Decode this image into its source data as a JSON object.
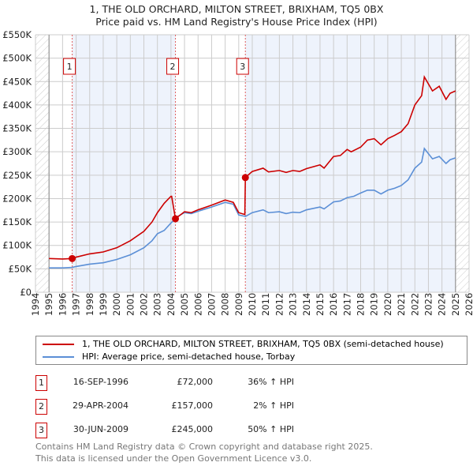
{
  "title_line1": "1, THE OLD ORCHARD, MILTON STREET, BRIXHAM, TQ5 0BX",
  "title_line2": "Price paid vs. HM Land Registry's House Price Index (HPI)",
  "chart_data": {
    "type": "line",
    "xlim": [
      1994,
      2026
    ],
    "ylim": [
      0,
      550000
    ],
    "x_ticks": [
      "1994",
      "1995",
      "1996",
      "1997",
      "1998",
      "1999",
      "2000",
      "2001",
      "2002",
      "2003",
      "2004",
      "2005",
      "2006",
      "2007",
      "2008",
      "2009",
      "2010",
      "2011",
      "2012",
      "2013",
      "2014",
      "2015",
      "2016",
      "2017",
      "2018",
      "2019",
      "2020",
      "2021",
      "2022",
      "2023",
      "2024",
      "2025",
      "2026"
    ],
    "y_ticks": [
      {
        "v": 0,
        "l": "£0"
      },
      {
        "v": 50000,
        "l": "£50K"
      },
      {
        "v": 100000,
        "l": "£100K"
      },
      {
        "v": 150000,
        "l": "£150K"
      },
      {
        "v": 200000,
        "l": "£200K"
      },
      {
        "v": 250000,
        "l": "£250K"
      },
      {
        "v": 300000,
        "l": "£300K"
      },
      {
        "v": 350000,
        "l": "£350K"
      },
      {
        "v": 400000,
        "l": "£400K"
      },
      {
        "v": 450000,
        "l": "£450K"
      },
      {
        "v": 500000,
        "l": "£500K"
      },
      {
        "v": 550000,
        "l": "£550K"
      }
    ],
    "data_range": [
      1995,
      2025
    ],
    "series": [
      {
        "name": "1, THE OLD ORCHARD, MILTON STREET, BRIXHAM, TQ5 0BX (semi-detached house)",
        "color": "#cc0000",
        "points": [
          [
            1995,
            72000
          ],
          [
            1996,
            71000
          ],
          [
            1996.71,
            72000
          ],
          [
            1997,
            75000
          ],
          [
            1998,
            82000
          ],
          [
            1999,
            86000
          ],
          [
            2000,
            95000
          ],
          [
            2001,
            110000
          ],
          [
            2002,
            130000
          ],
          [
            2002.6,
            150000
          ],
          [
            2003,
            170000
          ],
          [
            2003.5,
            190000
          ],
          [
            2004.0,
            205000
          ],
          [
            2004.05,
            205000
          ],
          [
            2004.33,
            157000
          ],
          [
            2005,
            172000
          ],
          [
            2005.5,
            170000
          ],
          [
            2006,
            176000
          ],
          [
            2007,
            186000
          ],
          [
            2008,
            197000
          ],
          [
            2008.6,
            192000
          ],
          [
            2009,
            170000
          ],
          [
            2009.45,
            166000
          ],
          [
            2009.49,
            245000
          ],
          [
            2010,
            258000
          ],
          [
            2010.8,
            265000
          ],
          [
            2011.2,
            257000
          ],
          [
            2012,
            260000
          ],
          [
            2012.5,
            256000
          ],
          [
            2013,
            260000
          ],
          [
            2013.5,
            258000
          ],
          [
            2014,
            264000
          ],
          [
            2015,
            272000
          ],
          [
            2015.3,
            265000
          ],
          [
            2016,
            290000
          ],
          [
            2016.5,
            292000
          ],
          [
            2017,
            305000
          ],
          [
            2017.3,
            300000
          ],
          [
            2018,
            310000
          ],
          [
            2018.5,
            325000
          ],
          [
            2019,
            328000
          ],
          [
            2019.5,
            315000
          ],
          [
            2020,
            328000
          ],
          [
            2020.5,
            335000
          ],
          [
            2021,
            343000
          ],
          [
            2021.5,
            360000
          ],
          [
            2022,
            400000
          ],
          [
            2022.5,
            420000
          ],
          [
            2022.7,
            460000
          ],
          [
            2023.3,
            430000
          ],
          [
            2023.8,
            440000
          ],
          [
            2024.3,
            412000
          ],
          [
            2024.6,
            425000
          ],
          [
            2025,
            430000
          ]
        ]
      },
      {
        "name": "HPI: Average price, semi-detached house, Torbay",
        "color": "#5b8fd6",
        "points": [
          [
            1995,
            52000
          ],
          [
            1996,
            52000
          ],
          [
            1996.71,
            53000
          ],
          [
            1997,
            55000
          ],
          [
            1998,
            60000
          ],
          [
            1999,
            63000
          ],
          [
            2000,
            70000
          ],
          [
            2001,
            80000
          ],
          [
            2002,
            95000
          ],
          [
            2002.6,
            110000
          ],
          [
            2003,
            125000
          ],
          [
            2003.5,
            132000
          ],
          [
            2004,
            148000
          ],
          [
            2004.5,
            162000
          ],
          [
            2005,
            170000
          ],
          [
            2005.5,
            168000
          ],
          [
            2006,
            173000
          ],
          [
            2007,
            182000
          ],
          [
            2008,
            192000
          ],
          [
            2008.6,
            188000
          ],
          [
            2009,
            165000
          ],
          [
            2009.5,
            162000
          ],
          [
            2010,
            170000
          ],
          [
            2010.8,
            176000
          ],
          [
            2011.2,
            170000
          ],
          [
            2012,
            172000
          ],
          [
            2012.5,
            168000
          ],
          [
            2013,
            171000
          ],
          [
            2013.5,
            170000
          ],
          [
            2014,
            176000
          ],
          [
            2015,
            182000
          ],
          [
            2015.3,
            178000
          ],
          [
            2016,
            193000
          ],
          [
            2016.5,
            195000
          ],
          [
            2017,
            202000
          ],
          [
            2017.5,
            205000
          ],
          [
            2018,
            212000
          ],
          [
            2018.5,
            218000
          ],
          [
            2019,
            218000
          ],
          [
            2019.5,
            210000
          ],
          [
            2020,
            218000
          ],
          [
            2020.5,
            222000
          ],
          [
            2021,
            228000
          ],
          [
            2021.5,
            240000
          ],
          [
            2022,
            265000
          ],
          [
            2022.5,
            278000
          ],
          [
            2022.7,
            307000
          ],
          [
            2023.3,
            285000
          ],
          [
            2023.8,
            290000
          ],
          [
            2024.3,
            275000
          ],
          [
            2024.6,
            283000
          ],
          [
            2025,
            287000
          ]
        ]
      }
    ],
    "sales": [
      {
        "label": "1",
        "x": 1996.71,
        "y": 72000
      },
      {
        "label": "2",
        "x": 2004.33,
        "y": 157000
      },
      {
        "label": "3",
        "x": 2009.49,
        "y": 245000
      }
    ]
  },
  "legend": {
    "red": "1, THE OLD ORCHARD, MILTON STREET, BRIXHAM, TQ5 0BX (semi-detached house)",
    "blue": "HPI: Average price, semi-detached house, Torbay"
  },
  "table": [
    {
      "num": "1",
      "date": "16-SEP-1996",
      "price": "£72,000",
      "hpi": "36% ↑ HPI"
    },
    {
      "num": "2",
      "date": "29-APR-2004",
      "price": "£157,000",
      "hpi": "2% ↑ HPI"
    },
    {
      "num": "3",
      "date": "30-JUN-2009",
      "price": "£245,000",
      "hpi": "50% ↑ HPI"
    }
  ],
  "footer": {
    "line1": "Contains HM Land Registry data © Crown copyright and database right 2025.",
    "line2": "This data is licensed under the Open Government Licence v3.0."
  }
}
